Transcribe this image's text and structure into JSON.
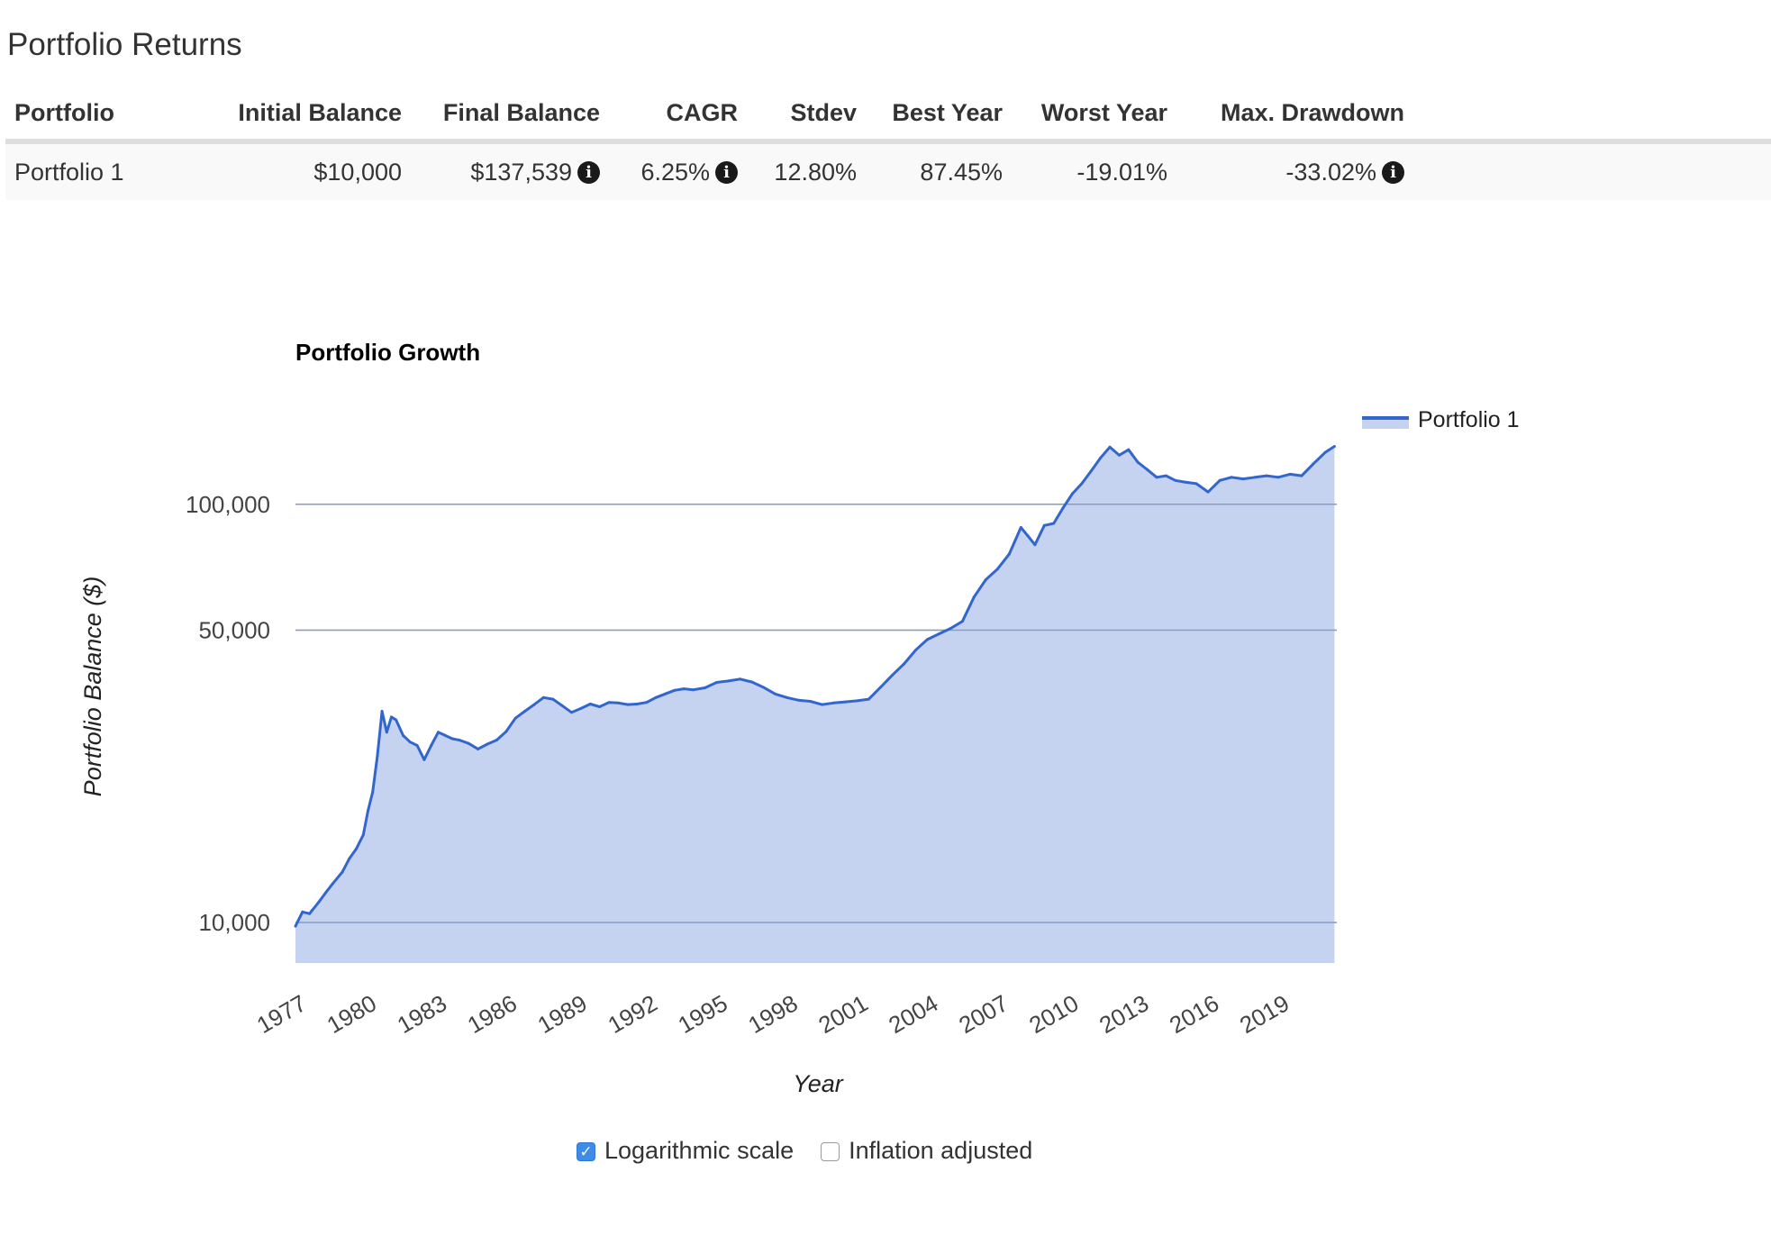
{
  "page_title": "Portfolio Returns",
  "table": {
    "headers": [
      "Portfolio",
      "Initial Balance",
      "Final Balance",
      "CAGR",
      "Stdev",
      "Best Year",
      "Worst Year",
      "Max. Drawdown"
    ],
    "rows": [
      {
        "portfolio": "Portfolio 1",
        "initial_balance": "$10,000",
        "final_balance": "$137,539",
        "cagr": "6.25%",
        "stdev": "12.80%",
        "best_year": "87.45%",
        "worst_year": "-19.01%",
        "max_drawdown": "-33.02%"
      }
    ],
    "info_icon": "info-circle-icon",
    "info_glyph": "i"
  },
  "chart_data": {
    "type": "area",
    "title": "Portfolio Growth",
    "xlabel": "Year",
    "ylabel": "Portfolio Balance ($)",
    "yscale": "log",
    "ylim": [
      8000,
      200000
    ],
    "yticks": [
      10000,
      50000,
      100000
    ],
    "ytick_labels": [
      "10,000",
      "50,000",
      "100,000"
    ],
    "xlim": [
      1977.0,
      2021.5
    ],
    "xticks": [
      1977,
      1980,
      1983,
      1986,
      1989,
      1992,
      1995,
      1998,
      2001,
      2004,
      2007,
      2010,
      2013,
      2016,
      2019
    ],
    "xtick_labels": [
      "1977",
      "1980",
      "1983",
      "1986",
      "1989",
      "1992",
      "1995",
      "1998",
      "2001",
      "2004",
      "2007",
      "2010",
      "2013",
      "2016",
      "2019"
    ],
    "grid": true,
    "legend": "top-right",
    "series": [
      {
        "name": "Portfolio 1",
        "color": "#3366cc",
        "fill": "#c5d3f0",
        "x": [
          1977.0,
          1977.3,
          1977.6,
          1978.0,
          1978.3,
          1978.6,
          1979.0,
          1979.3,
          1979.6,
          1979.9,
          1980.1,
          1980.3,
          1980.5,
          1980.7,
          1980.9,
          1981.1,
          1981.3,
          1981.6,
          1981.9,
          1982.2,
          1982.5,
          1982.8,
          1983.1,
          1983.4,
          1983.7,
          1984.0,
          1984.4,
          1984.8,
          1985.2,
          1985.6,
          1986.0,
          1986.4,
          1986.8,
          1987.2,
          1987.6,
          1988.0,
          1988.4,
          1988.8,
          1989.2,
          1989.6,
          1990.0,
          1990.4,
          1990.8,
          1991.2,
          1991.6,
          1992.0,
          1992.4,
          1992.8,
          1993.2,
          1993.6,
          1994.0,
          1994.5,
          1995.0,
          1995.5,
          1996.0,
          1996.5,
          1997.0,
          1997.5,
          1998.0,
          1998.5,
          1999.0,
          1999.5,
          2000.0,
          2000.5,
          2001.0,
          2001.5,
          2002.0,
          2002.5,
          2003.0,
          2003.5,
          2004.0,
          2004.5,
          2005.0,
          2005.5,
          2006.0,
          2006.5,
          2007.0,
          2007.5,
          2008.0,
          2008.3,
          2008.6,
          2009.0,
          2009.4,
          2009.8,
          2010.2,
          2010.6,
          2011.0,
          2011.4,
          2011.8,
          2012.2,
          2012.6,
          2013.0,
          2013.4,
          2013.8,
          2014.2,
          2014.6,
          2015.0,
          2015.5,
          2016.0,
          2016.5,
          2017.0,
          2017.5,
          2018.0,
          2018.5,
          2019.0,
          2019.5,
          2020.0,
          2020.5,
          2021.0,
          2021.4
        ],
        "values": [
          9800,
          10600,
          10500,
          11200,
          11800,
          12400,
          13200,
          14200,
          15000,
          16200,
          18500,
          20500,
          25000,
          32000,
          28500,
          31000,
          30500,
          28000,
          27000,
          26500,
          24500,
          26500,
          28500,
          28000,
          27500,
          27300,
          26800,
          26000,
          26700,
          27300,
          28600,
          30800,
          32000,
          33200,
          34500,
          34200,
          33000,
          31800,
          32500,
          33300,
          32800,
          33600,
          33500,
          33200,
          33300,
          33600,
          34500,
          35200,
          35900,
          36200,
          36000,
          36400,
          37500,
          37800,
          38200,
          37600,
          36500,
          35200,
          34500,
          34000,
          33800,
          33200,
          33500,
          33700,
          33900,
          34200,
          36500,
          39000,
          41500,
          44800,
          47500,
          49000,
          50500,
          52500,
          60000,
          66000,
          70000,
          76000,
          88000,
          84000,
          80000,
          89000,
          90000,
          98000,
          106000,
          112000,
          120000,
          129000,
          137000,
          131000,
          135000,
          126000,
          121000,
          116000,
          117000,
          114000,
          113000,
          112000,
          107000,
          114000,
          116000,
          115000,
          116000,
          117000,
          116000,
          118000,
          117000,
          125000,
          133000,
          137539
        ]
      }
    ]
  },
  "controls": {
    "log_scale": {
      "label": "Logarithmic scale",
      "checked": true,
      "check_glyph": "✓"
    },
    "inflation_adjusted": {
      "label": "Inflation adjusted",
      "checked": false
    }
  }
}
